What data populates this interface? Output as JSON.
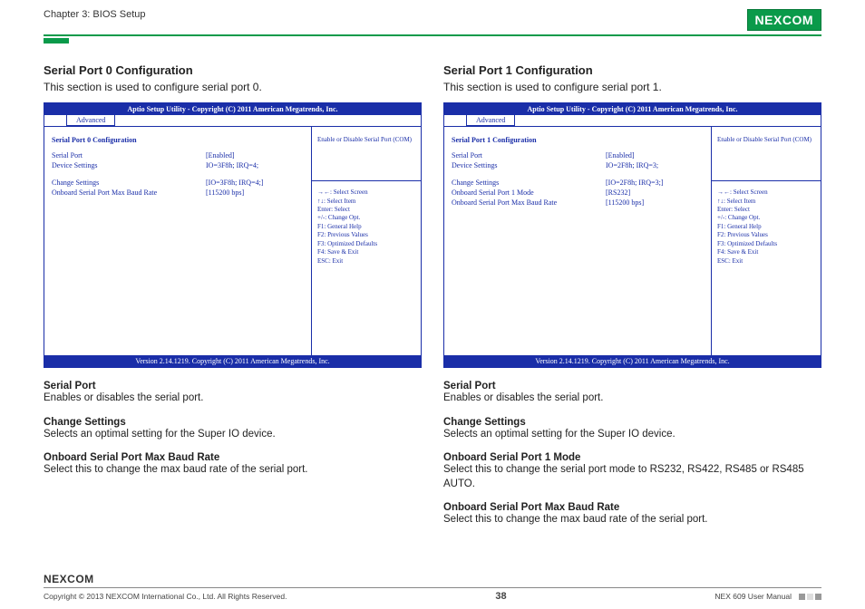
{
  "header": {
    "chapter": "Chapter 3: BIOS Setup",
    "logo_text": "NEXCOM"
  },
  "left": {
    "title": "Serial Port 0 Configuration",
    "desc": "This section is used to configure serial port 0.",
    "bios": {
      "top": "Aptio Setup Utility - Copyright (C) 2011 American Megatrends, Inc.",
      "tab": "Advanced",
      "heading": "Serial Port 0 Configuration",
      "rows1": [
        {
          "lbl": "Serial Port",
          "val": "[Enabled]"
        },
        {
          "lbl": "Device Settings",
          "val": "IO=3F8h; IRQ=4;"
        }
      ],
      "rows2": [
        {
          "lbl": "Change Settings",
          "val": "[IO=3F8h; IRQ=4;]"
        },
        {
          "lbl": "Onboard Serial Port Max Baud Rate",
          "val": "[115200 bps]"
        }
      ],
      "help": "Enable or Disable Serial Port (COM)",
      "keys": [
        "→←: Select Screen",
        "↑↓: Select Item",
        "Enter: Select",
        "+/-: Change Opt.",
        "F1: General Help",
        "F2: Previous Values",
        "F3: Optimized Defaults",
        "F4: Save & Exit",
        "ESC: Exit"
      ],
      "footer": "Version 2.14.1219. Copyright (C) 2011 American Megatrends, Inc."
    },
    "items": [
      {
        "lbl": "Serial Port",
        "txt": "Enables or disables the serial port."
      },
      {
        "lbl": "Change Settings",
        "txt": "Selects an optimal setting for the Super IO device."
      },
      {
        "lbl": "Onboard Serial Port Max Baud Rate",
        "txt": "Select this to change the max baud rate of the serial port."
      }
    ]
  },
  "right": {
    "title": "Serial Port 1 Configuration",
    "desc": "This section is used to configure serial port 1.",
    "bios": {
      "top": "Aptio Setup Utility - Copyright (C) 2011 American Megatrends, Inc.",
      "tab": "Advanced",
      "heading": "Serial Port 1 Configuration",
      "rows1": [
        {
          "lbl": "Serial Port",
          "val": "[Enabled]"
        },
        {
          "lbl": "Device Settings",
          "val": "IO=2F8h; IRQ=3;"
        }
      ],
      "rows2": [
        {
          "lbl": "Change Settings",
          "val": "[IO=2F8h; IRQ=3;]"
        },
        {
          "lbl": "Onboard Serial Port 1 Mode",
          "val": "[RS232]"
        },
        {
          "lbl": "Onboard Serial Port Max Baud Rate",
          "val": "[115200 bps]"
        }
      ],
      "help": "Enable or Disable Serial Port (COM)",
      "keys": [
        "→←: Select Screen",
        "↑↓: Select Item",
        "Enter: Select",
        "+/-: Change Opt.",
        "F1: General Help",
        "F2: Previous Values",
        "F3: Optimized Defaults",
        "F4: Save & Exit",
        "ESC: Exit"
      ],
      "footer": "Version 2.14.1219. Copyright (C) 2011 American Megatrends, Inc."
    },
    "items": [
      {
        "lbl": "Serial Port",
        "txt": "Enables or disables the serial port."
      },
      {
        "lbl": "Change Settings",
        "txt": "Selects an optimal setting for the Super IO device."
      },
      {
        "lbl": "Onboard Serial Port 1 Mode",
        "txt": "Select this to change the serial port mode to RS232, RS422, RS485  or RS485 AUTO."
      },
      {
        "lbl": "Onboard Serial Port Max Baud Rate",
        "txt": "Select this to change the max baud rate of the serial port."
      }
    ]
  },
  "footer": {
    "logo": "NEXCOM",
    "copyright": "Copyright © 2013 NEXCOM International Co., Ltd. All Rights Reserved.",
    "page": "38",
    "doc": "NEX 609 User Manual"
  },
  "colors": {
    "brand_green": "#0a9a4a",
    "bios_blue": "#1a2ea8"
  }
}
